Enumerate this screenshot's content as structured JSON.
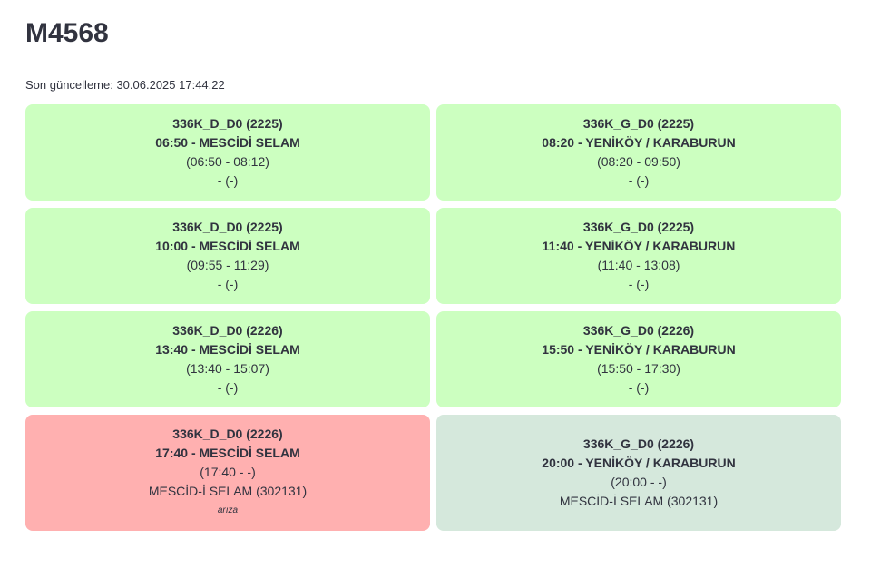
{
  "header": {
    "title": "M4568",
    "updated": "Son güncelleme: 30.06.2025 17:44:22"
  },
  "cards": [
    {
      "route": "336K_D_D0 (2225)",
      "trip": "06:50 - MESCİDİ SELAM",
      "times": "(06:50 - 08:12)",
      "stop": "- (-)",
      "color": "#ccffc0"
    },
    {
      "route": "336K_G_D0 (2225)",
      "trip": "08:20 - YENİKÖY / KARABURUN",
      "times": "(08:20 - 09:50)",
      "stop": "- (-)",
      "color": "#ccffc0"
    },
    {
      "route": "336K_D_D0 (2225)",
      "trip": "10:00 - MESCİDİ SELAM",
      "times": "(09:55 - 11:29)",
      "stop": "- (-)",
      "color": "#ccffc0"
    },
    {
      "route": "336K_G_D0 (2225)",
      "trip": "11:40 - YENİKÖY / KARABURUN",
      "times": "(11:40 - 13:08)",
      "stop": "- (-)",
      "color": "#ccffc0"
    },
    {
      "route": "336K_D_D0 (2226)",
      "trip": "13:40 - MESCİDİ SELAM",
      "times": "(13:40 - 15:07)",
      "stop": "- (-)",
      "color": "#ccffc0"
    },
    {
      "route": "336K_G_D0 (2226)",
      "trip": "15:50 - YENİKÖY / KARABURUN",
      "times": "(15:50 - 17:30)",
      "stop": "- (-)",
      "color": "#ccffc0"
    },
    {
      "route": "336K_D_D0 (2226)",
      "trip": "17:40 - MESCİDİ SELAM",
      "times": "(17:40 - -)",
      "stop": "MESCİD-İ SELAM (302131)",
      "note": "arıza",
      "color": "#ffb0b0"
    },
    {
      "route": "336K_G_D0 (2226)",
      "trip": "20:00 - YENİKÖY / KARABURUN",
      "times": "(20:00 - -)",
      "stop": "MESCİD-İ SELAM (302131)",
      "color": "#d5e8dc"
    }
  ]
}
